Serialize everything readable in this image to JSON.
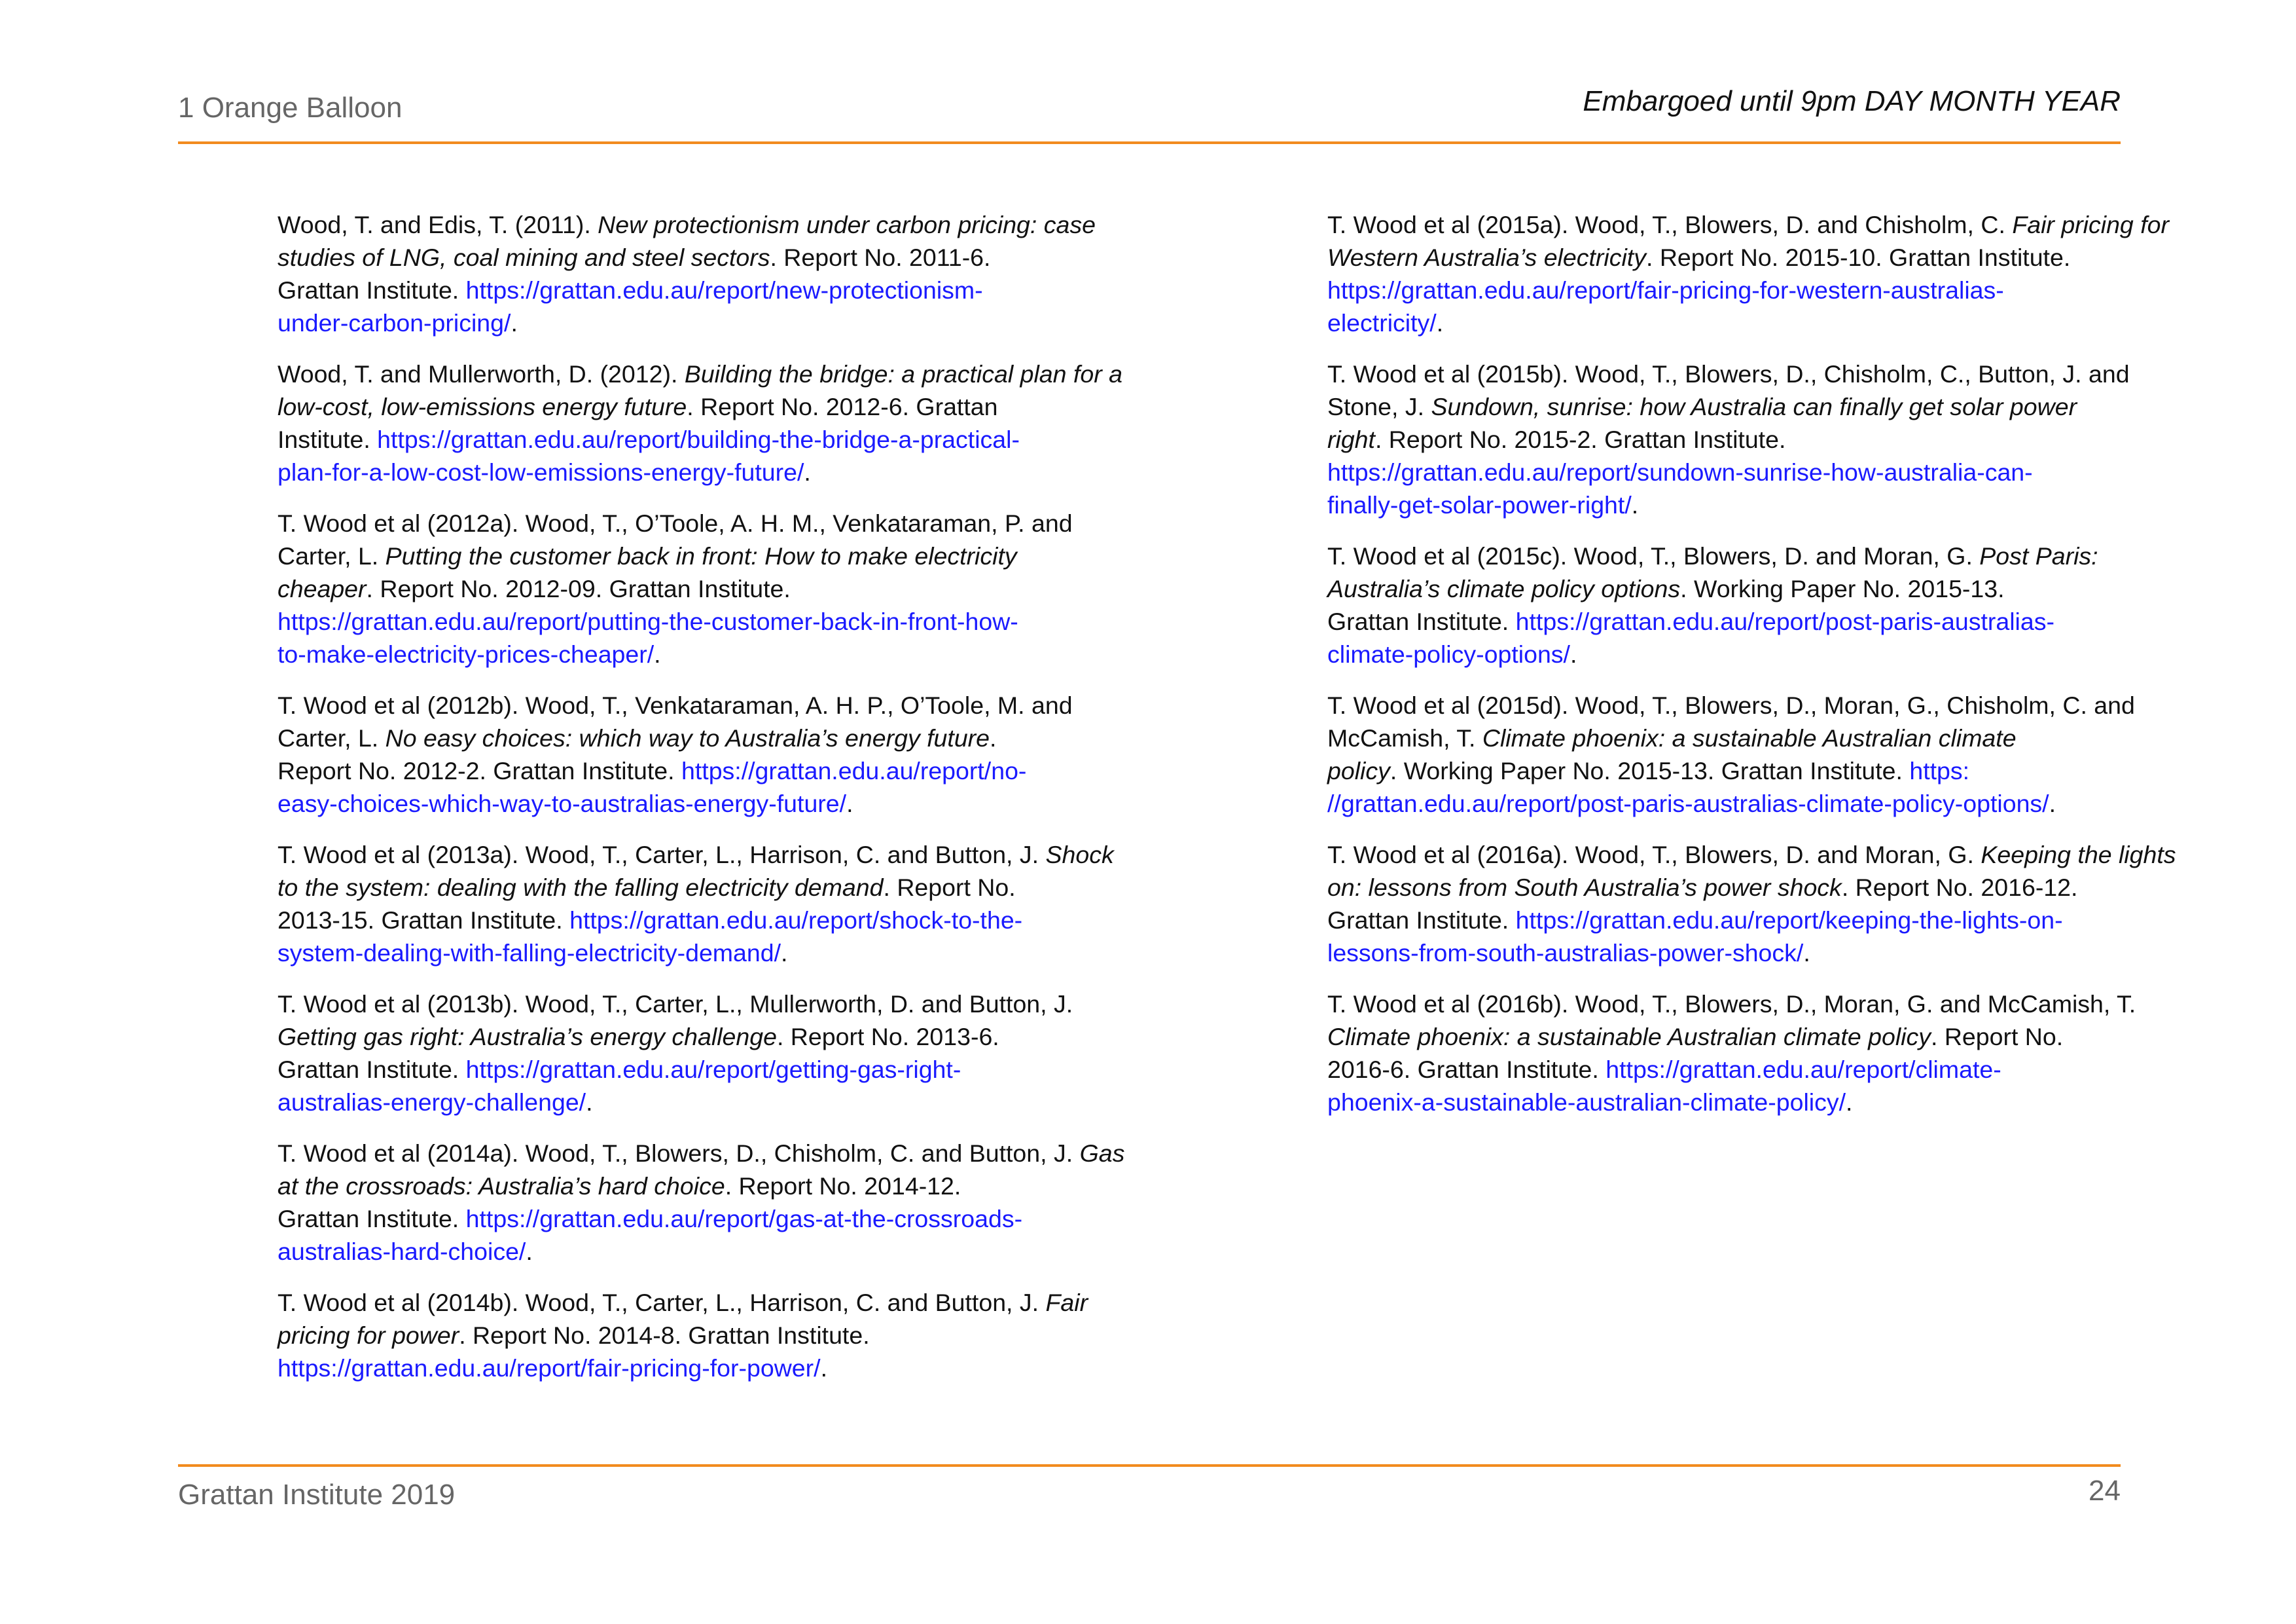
{
  "header": {
    "left": "1 Orange Balloon",
    "right": "Embargoed until 9pm DAY MONTH YEAR"
  },
  "footer": {
    "left": "Grattan Institute 2019",
    "page_number": "24"
  },
  "left_column": [
    {
      "lines": [
        [
          [
            "n",
            "Wood, T. and Edis, T. (2011). "
          ],
          [
            "i",
            "New protectionism under carbon pricing: case"
          ]
        ],
        [
          [
            "i",
            "studies of LNG, coal mining and steel sectors"
          ],
          [
            "n",
            ". Report No. 2011-6."
          ]
        ],
        [
          [
            "n",
            "Grattan Institute. "
          ],
          [
            "l",
            "https://grattan.edu.au/report/new-protectionism-"
          ]
        ],
        [
          [
            "l",
            "under-carbon-pricing/"
          ],
          [
            "n",
            "."
          ]
        ]
      ]
    },
    {
      "lines": [
        [
          [
            "n",
            "Wood, T. and Mullerworth, D. (2012). "
          ],
          [
            "i",
            "Building the bridge: a practical plan for a"
          ]
        ],
        [
          [
            "i",
            "low-cost, low-emissions energy future"
          ],
          [
            "n",
            ". Report No. 2012-6. Grattan"
          ]
        ],
        [
          [
            "n",
            "Institute. "
          ],
          [
            "l",
            "https://grattan.edu.au/report/building-the-bridge-a-practical-"
          ]
        ],
        [
          [
            "l",
            "plan-for-a-low-cost-low-emissions-energy-future/"
          ],
          [
            "n",
            "."
          ]
        ]
      ]
    },
    {
      "lines": [
        [
          [
            "n",
            "T. Wood et al (2012a). Wood, T., O’Toole, A. H. M., Venkataraman, P. and"
          ]
        ],
        [
          [
            "n",
            "Carter, L. "
          ],
          [
            "i",
            "Putting the customer back in front: How to make electricity"
          ]
        ],
        [
          [
            "i",
            "cheaper"
          ],
          [
            "n",
            ". Report No. 2012-09. Grattan Institute."
          ]
        ],
        [
          [
            "l",
            "https://grattan.edu.au/report/putting-the-customer-back-in-front-how-"
          ]
        ],
        [
          [
            "l",
            "to-make-electricity-prices-cheaper/"
          ],
          [
            "n",
            "."
          ]
        ]
      ]
    },
    {
      "lines": [
        [
          [
            "n",
            "T. Wood et al (2012b). Wood, T., Venkataraman, A. H. P., O’Toole, M. and"
          ]
        ],
        [
          [
            "n",
            "Carter, L. "
          ],
          [
            "i",
            "No easy choices: which way to Australia’s energy future"
          ],
          [
            "n",
            "."
          ]
        ],
        [
          [
            "n",
            "Report No. 2012-2. Grattan Institute. "
          ],
          [
            "l",
            "https://grattan.edu.au/report/no-"
          ]
        ],
        [
          [
            "l",
            "easy-choices-which-way-to-australias-energy-future/"
          ],
          [
            "n",
            "."
          ]
        ]
      ]
    },
    {
      "lines": [
        [
          [
            "n",
            "T. Wood et al (2013a). Wood, T., Carter, L., Harrison, C. and Button, J. "
          ],
          [
            "i",
            "Shock"
          ]
        ],
        [
          [
            "i",
            "to the system: dealing with the falling electricity demand"
          ],
          [
            "n",
            ". Report No."
          ]
        ],
        [
          [
            "n",
            "2013-15. Grattan Institute. "
          ],
          [
            "l",
            "https://grattan.edu.au/report/shock-to-the-"
          ]
        ],
        [
          [
            "l",
            "system-dealing-with-falling-electricity-demand/"
          ],
          [
            "n",
            "."
          ]
        ]
      ]
    },
    {
      "lines": [
        [
          [
            "n",
            "T. Wood et al (2013b). Wood, T., Carter, L., Mullerworth, D. and Button, J."
          ]
        ],
        [
          [
            "i",
            "Getting gas right: Australia’s energy challenge"
          ],
          [
            "n",
            ". Report No. 2013-6."
          ]
        ],
        [
          [
            "n",
            "Grattan Institute. "
          ],
          [
            "l",
            "https://grattan.edu.au/report/getting-gas-right-"
          ]
        ],
        [
          [
            "l",
            "australias-energy-challenge/"
          ],
          [
            "n",
            "."
          ]
        ]
      ]
    },
    {
      "lines": [
        [
          [
            "n",
            "T. Wood et al (2014a). Wood, T., Blowers, D., Chisholm, C. and Button, J. "
          ],
          [
            "i",
            "Gas"
          ]
        ],
        [
          [
            "i",
            "at the crossroads: Australia’s hard choice"
          ],
          [
            "n",
            ". Report No. 2014-12."
          ]
        ],
        [
          [
            "n",
            "Grattan Institute. "
          ],
          [
            "l",
            "https://grattan.edu.au/report/gas-at-the-crossroads-"
          ]
        ],
        [
          [
            "l",
            "australias-hard-choice/"
          ],
          [
            "n",
            "."
          ]
        ]
      ]
    },
    {
      "lines": [
        [
          [
            "n",
            "T. Wood et al (2014b). Wood, T., Carter, L., Harrison, C. and Button, J. "
          ],
          [
            "i",
            "Fair"
          ]
        ],
        [
          [
            "i",
            "pricing for power"
          ],
          [
            "n",
            ". Report No. 2014-8. Grattan Institute."
          ]
        ],
        [
          [
            "l",
            "https://grattan.edu.au/report/fair-pricing-for-power/"
          ],
          [
            "n",
            "."
          ]
        ]
      ]
    }
  ],
  "right_column": [
    {
      "lines": [
        [
          [
            "n",
            "T. Wood et al (2015a). Wood, T., Blowers, D. and Chisholm, C. "
          ],
          [
            "i",
            "Fair pricing for"
          ]
        ],
        [
          [
            "i",
            "Western Australia’s electricity"
          ],
          [
            "n",
            ". Report No. 2015-10. Grattan Institute."
          ]
        ],
        [
          [
            "l",
            "https://grattan.edu.au/report/fair-pricing-for-western-australias-"
          ]
        ],
        [
          [
            "l",
            "electricity/"
          ],
          [
            "n",
            "."
          ]
        ]
      ]
    },
    {
      "lines": [
        [
          [
            "n",
            "T. Wood et al (2015b). Wood, T., Blowers, D., Chisholm, C., Button, J. and"
          ]
        ],
        [
          [
            "n",
            "Stone, J. "
          ],
          [
            "i",
            "Sundown, sunrise: how Australia can finally get solar power"
          ]
        ],
        [
          [
            "i",
            "right"
          ],
          [
            "n",
            ". Report No. 2015-2. Grattan Institute."
          ]
        ],
        [
          [
            "l",
            "https://grattan.edu.au/report/sundown-sunrise-how-australia-can-"
          ]
        ],
        [
          [
            "l",
            "finally-get-solar-power-right/"
          ],
          [
            "n",
            "."
          ]
        ]
      ]
    },
    {
      "lines": [
        [
          [
            "n",
            "T. Wood et al (2015c). Wood, T., Blowers, D. and Moran, G. "
          ],
          [
            "i",
            "Post Paris:"
          ]
        ],
        [
          [
            "i",
            "Australia’s climate policy options"
          ],
          [
            "n",
            ". Working Paper No. 2015-13."
          ]
        ],
        [
          [
            "n",
            "Grattan Institute. "
          ],
          [
            "l",
            "https://grattan.edu.au/report/post-paris-australias-"
          ]
        ],
        [
          [
            "l",
            "climate-policy-options/"
          ],
          [
            "n",
            "."
          ]
        ]
      ]
    },
    {
      "lines": [
        [
          [
            "n",
            "T. Wood et al (2015d). Wood, T., Blowers, D., Moran, G., Chisholm, C. and"
          ]
        ],
        [
          [
            "n",
            "McCamish, T. "
          ],
          [
            "i",
            "Climate phoenix: a sustainable Australian climate"
          ]
        ],
        [
          [
            "i",
            "policy"
          ],
          [
            "n",
            ". Working Paper No. 2015-13. Grattan Institute. "
          ],
          [
            "l",
            "https:"
          ]
        ],
        [
          [
            "l",
            "//grattan.edu.au/report/post-paris-australias-climate-policy-options/"
          ],
          [
            "n",
            "."
          ]
        ]
      ]
    },
    {
      "lines": [
        [
          [
            "n",
            "T. Wood et al (2016a). Wood, T., Blowers, D. and Moran, G. "
          ],
          [
            "i",
            "Keeping the lights"
          ]
        ],
        [
          [
            "i",
            "on: lessons from South Australia’s power shock"
          ],
          [
            "n",
            ". Report No. 2016-12."
          ]
        ],
        [
          [
            "n",
            "Grattan Institute. "
          ],
          [
            "l",
            "https://grattan.edu.au/report/keeping-the-lights-on-"
          ]
        ],
        [
          [
            "l",
            "lessons-from-south-australias-power-shock/"
          ],
          [
            "n",
            "."
          ]
        ]
      ]
    },
    {
      "lines": [
        [
          [
            "n",
            "T. Wood et al (2016b). Wood, T., Blowers, D., Moran, G. and McCamish, T."
          ]
        ],
        [
          [
            "i",
            "Climate phoenix: a sustainable Australian climate policy"
          ],
          [
            "n",
            ". Report No."
          ]
        ],
        [
          [
            "n",
            "2016-6. Grattan Institute. "
          ],
          [
            "l",
            "https://grattan.edu.au/report/climate-"
          ]
        ],
        [
          [
            "l",
            "phoenix-a-sustainable-australian-climate-policy/"
          ],
          [
            "n",
            "."
          ]
        ]
      ]
    }
  ]
}
